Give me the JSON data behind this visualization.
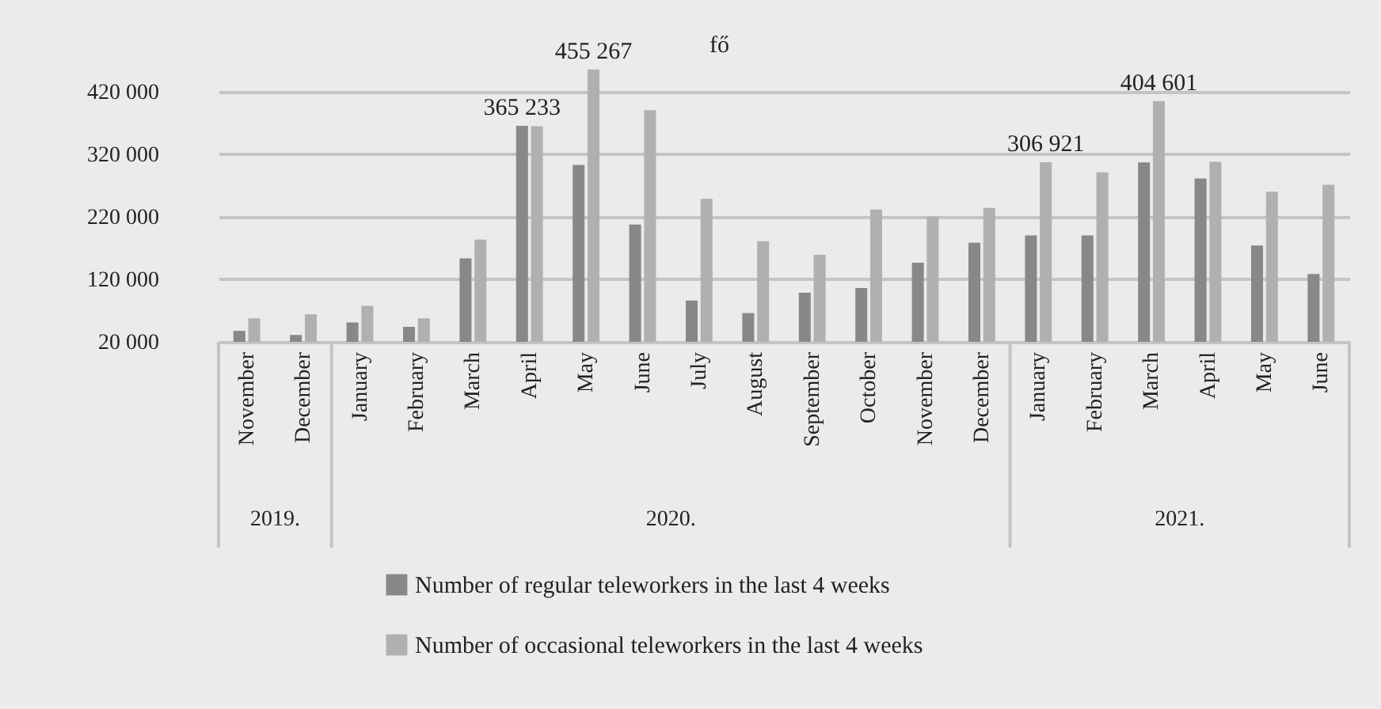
{
  "chart_data": {
    "type": "bar",
    "categories": [
      "November",
      "December",
      "January",
      "February",
      "March",
      "April",
      "May",
      "June",
      "July",
      "August",
      "September",
      "October",
      "November",
      "December",
      "January",
      "February",
      "March",
      "April",
      "May",
      "June"
    ],
    "series": [
      {
        "name": "Number of regular teleworkers in the last 4 weeks",
        "color": "#888888",
        "values": [
          37500,
          31000,
          51000,
          44000,
          153500,
          365233,
          302500,
          207500,
          86000,
          66000,
          98500,
          106000,
          146500,
          178500,
          190000,
          190000,
          306750,
          281000,
          174000,
          128500
        ],
        "value_labels": [
          null,
          null,
          null,
          null,
          null,
          "365 233",
          null,
          null,
          null,
          null,
          null,
          null,
          null,
          null,
          null,
          null,
          null,
          null,
          null,
          null
        ]
      },
      {
        "name": "Number of occasional teleworkers in the last 4 weeks",
        "color": "#b0b0b0",
        "values": [
          57500,
          64000,
          77500,
          57500,
          183500,
          364500,
          455267,
          390000,
          248500,
          181000,
          159000,
          231500,
          220000,
          234000,
          306921,
          291000,
          404601,
          307500,
          260000,
          271000
        ],
        "value_labels": [
          null,
          null,
          null,
          null,
          null,
          null,
          "455 267",
          null,
          null,
          null,
          null,
          null,
          null,
          null,
          "306 921",
          null,
          "404 601",
          null,
          null,
          null
        ]
      }
    ],
    "ylim": [
      20000,
      460000
    ],
    "yticks": [
      {
        "value": 20000,
        "label": "20 000"
      },
      {
        "value": 120000,
        "label": "120 000"
      },
      {
        "value": 220000,
        "label": "220 000"
      },
      {
        "value": 320000,
        "label": "320 000"
      },
      {
        "value": 420000,
        "label": "420 000"
      }
    ],
    "grid": "y",
    "legend": "bottom",
    "annotations": [
      "fő",
      "2019.",
      "2020.",
      "2021."
    ]
  }
}
